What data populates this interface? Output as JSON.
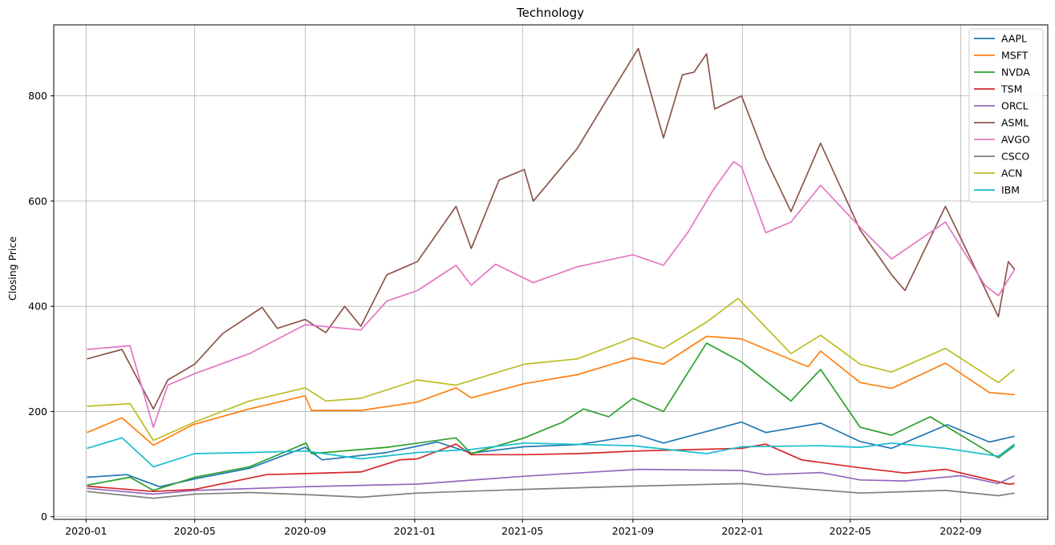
{
  "chart_data": {
    "type": "line",
    "title": "Technology",
    "xlabel": "",
    "ylabel": "Closing Price",
    "grid": true,
    "legend_position": "top-right",
    "xlim": [
      "2019-11-26",
      "2022-12-07"
    ],
    "ylim": [
      -5,
      935
    ],
    "x_ticks": [
      "2020-01",
      "2020-05",
      "2020-09",
      "2021-01",
      "2021-05",
      "2021-09",
      "2022-01",
      "2022-05",
      "2022-09"
    ],
    "y_ticks": [
      0,
      200,
      400,
      600,
      800
    ],
    "series": [
      {
        "name": "AAPL",
        "color": "#1f77b4",
        "points": [
          [
            "2020-01-02",
            75
          ],
          [
            "2020-02-15",
            80
          ],
          [
            "2020-03-23",
            57
          ],
          [
            "2020-05-01",
            72
          ],
          [
            "2020-07-01",
            92
          ],
          [
            "2020-09-01",
            132
          ],
          [
            "2020-09-20",
            108
          ],
          [
            "2020-12-01",
            122
          ],
          [
            "2021-01-26",
            142
          ],
          [
            "2021-03-05",
            121
          ],
          [
            "2021-05-03",
            133
          ],
          [
            "2021-07-01",
            137
          ],
          [
            "2021-09-07",
            155
          ],
          [
            "2021-10-05",
            140
          ],
          [
            "2021-12-31",
            180
          ],
          [
            "2022-01-27",
            160
          ],
          [
            "2022-03-29",
            178
          ],
          [
            "2022-05-12",
            143
          ],
          [
            "2022-06-16",
            130
          ],
          [
            "2022-08-17",
            175
          ],
          [
            "2022-10-03",
            142
          ],
          [
            "2022-10-31",
            153
          ]
        ]
      },
      {
        "name": "MSFT",
        "color": "#ff7f0e",
        "points": [
          [
            "2020-01-02",
            160
          ],
          [
            "2020-02-10",
            188
          ],
          [
            "2020-03-16",
            136
          ],
          [
            "2020-04-29",
            175
          ],
          [
            "2020-07-01",
            205
          ],
          [
            "2020-09-01",
            230
          ],
          [
            "2020-09-08",
            202
          ],
          [
            "2020-11-02",
            202
          ],
          [
            "2021-01-04",
            218
          ],
          [
            "2021-02-16",
            245
          ],
          [
            "2021-03-05",
            226
          ],
          [
            "2021-05-03",
            253
          ],
          [
            "2021-07-01",
            270
          ],
          [
            "2021-09-01",
            302
          ],
          [
            "2021-10-05",
            290
          ],
          [
            "2021-11-22",
            343
          ],
          [
            "2021-12-31",
            338
          ],
          [
            "2022-03-15",
            285
          ],
          [
            "2022-03-29",
            315
          ],
          [
            "2022-05-12",
            255
          ],
          [
            "2022-06-16",
            244
          ],
          [
            "2022-08-15",
            292
          ],
          [
            "2022-10-03",
            236
          ],
          [
            "2022-10-31",
            232
          ]
        ]
      },
      {
        "name": "NVDA",
        "color": "#2ca02c",
        "points": [
          [
            "2020-01-02",
            60
          ],
          [
            "2020-02-19",
            75
          ],
          [
            "2020-03-16",
            50
          ],
          [
            "2020-05-01",
            75
          ],
          [
            "2020-07-01",
            95
          ],
          [
            "2020-09-02",
            140
          ],
          [
            "2020-09-08",
            120
          ],
          [
            "2020-12-01",
            132
          ],
          [
            "2021-02-16",
            150
          ],
          [
            "2021-03-05",
            120
          ],
          [
            "2021-05-03",
            150
          ],
          [
            "2021-06-15",
            180
          ],
          [
            "2021-07-08",
            205
          ],
          [
            "2021-08-05",
            190
          ],
          [
            "2021-09-01",
            225
          ],
          [
            "2021-10-05",
            200
          ],
          [
            "2021-11-22",
            330
          ],
          [
            "2021-12-31",
            294
          ],
          [
            "2022-02-24",
            220
          ],
          [
            "2022-03-29",
            280
          ],
          [
            "2022-05-12",
            170
          ],
          [
            "2022-06-16",
            155
          ],
          [
            "2022-07-29",
            190
          ],
          [
            "2022-10-13",
            112
          ],
          [
            "2022-10-31",
            135
          ]
        ]
      },
      {
        "name": "TSM",
        "color": "#d62728",
        "points": [
          [
            "2020-01-02",
            58
          ],
          [
            "2020-03-16",
            48
          ],
          [
            "2020-05-01",
            52
          ],
          [
            "2020-07-20",
            80
          ],
          [
            "2020-09-01",
            82
          ],
          [
            "2020-11-02",
            85
          ],
          [
            "2020-12-15",
            108
          ],
          [
            "2021-01-04",
            110
          ],
          [
            "2021-02-16",
            138
          ],
          [
            "2021-03-05",
            118
          ],
          [
            "2021-05-03",
            118
          ],
          [
            "2021-07-01",
            120
          ],
          [
            "2021-09-07",
            125
          ],
          [
            "2021-12-31",
            130
          ],
          [
            "2022-01-27",
            138
          ],
          [
            "2022-03-08",
            108
          ],
          [
            "2022-05-12",
            93
          ],
          [
            "2022-07-01",
            83
          ],
          [
            "2022-08-15",
            90
          ],
          [
            "2022-10-24",
            62
          ],
          [
            "2022-10-31",
            63
          ]
        ]
      },
      {
        "name": "ORCL",
        "color": "#9467bd",
        "points": [
          [
            "2020-01-02",
            54
          ],
          [
            "2020-03-16",
            43
          ],
          [
            "2020-05-01",
            50
          ],
          [
            "2020-09-01",
            57
          ],
          [
            "2021-01-04",
            62
          ],
          [
            "2021-05-03",
            77
          ],
          [
            "2021-09-07",
            90
          ],
          [
            "2021-12-31",
            88
          ],
          [
            "2022-01-27",
            80
          ],
          [
            "2022-03-29",
            84
          ],
          [
            "2022-05-12",
            70
          ],
          [
            "2022-07-01",
            68
          ],
          [
            "2022-09-01",
            78
          ],
          [
            "2022-10-13",
            63
          ],
          [
            "2022-10-31",
            78
          ]
        ]
      },
      {
        "name": "ASML",
        "color": "#8c564b",
        "points": [
          [
            "2020-01-02",
            300
          ],
          [
            "2020-02-10",
            318
          ],
          [
            "2020-03-16",
            205
          ],
          [
            "2020-04-01",
            260
          ],
          [
            "2020-05-01",
            290
          ],
          [
            "2020-06-01",
            348
          ],
          [
            "2020-07-15",
            398
          ],
          [
            "2020-08-01",
            358
          ],
          [
            "2020-09-01",
            375
          ],
          [
            "2020-09-24",
            350
          ],
          [
            "2020-10-15",
            400
          ],
          [
            "2020-11-02",
            362
          ],
          [
            "2020-12-01",
            460
          ],
          [
            "2021-01-04",
            485
          ],
          [
            "2021-02-16",
            590
          ],
          [
            "2021-03-05",
            510
          ],
          [
            "2021-04-05",
            640
          ],
          [
            "2021-05-03",
            660
          ],
          [
            "2021-05-13",
            600
          ],
          [
            "2021-07-01",
            700
          ],
          [
            "2021-08-02",
            790
          ],
          [
            "2021-09-07",
            890
          ],
          [
            "2021-10-05",
            720
          ],
          [
            "2021-10-26",
            840
          ],
          [
            "2021-11-08",
            845
          ],
          [
            "2021-11-22",
            880
          ],
          [
            "2021-12-01",
            775
          ],
          [
            "2021-12-31",
            800
          ],
          [
            "2022-01-27",
            680
          ],
          [
            "2022-02-24",
            580
          ],
          [
            "2022-03-29",
            710
          ],
          [
            "2022-05-12",
            545
          ],
          [
            "2022-06-16",
            460
          ],
          [
            "2022-07-01",
            430
          ],
          [
            "2022-08-15",
            590
          ],
          [
            "2022-09-01",
            530
          ],
          [
            "2022-10-13",
            380
          ],
          [
            "2022-10-24",
            485
          ],
          [
            "2022-10-31",
            470
          ]
        ]
      },
      {
        "name": "AVGO",
        "color": "#e377c2",
        "points": [
          [
            "2020-01-02",
            318
          ],
          [
            "2020-02-19",
            325
          ],
          [
            "2020-03-16",
            170
          ],
          [
            "2020-04-01",
            250
          ],
          [
            "2020-05-01",
            272
          ],
          [
            "2020-07-01",
            310
          ],
          [
            "2020-09-01",
            365
          ],
          [
            "2020-11-02",
            355
          ],
          [
            "2020-12-01",
            410
          ],
          [
            "2021-01-04",
            430
          ],
          [
            "2021-02-16",
            478
          ],
          [
            "2021-03-05",
            440
          ],
          [
            "2021-04-01",
            480
          ],
          [
            "2021-05-13",
            445
          ],
          [
            "2021-07-01",
            475
          ],
          [
            "2021-09-01",
            498
          ],
          [
            "2021-10-05",
            478
          ],
          [
            "2021-11-01",
            540
          ],
          [
            "2021-11-29",
            620
          ],
          [
            "2021-12-22",
            675
          ],
          [
            "2021-12-31",
            665
          ],
          [
            "2022-01-27",
            540
          ],
          [
            "2022-02-24",
            560
          ],
          [
            "2022-03-29",
            630
          ],
          [
            "2022-05-12",
            550
          ],
          [
            "2022-06-16",
            490
          ],
          [
            "2022-08-15",
            560
          ],
          [
            "2022-09-28",
            440
          ],
          [
            "2022-10-13",
            420
          ],
          [
            "2022-10-31",
            470
          ]
        ]
      },
      {
        "name": "CSCO",
        "color": "#7f7f7f",
        "points": [
          [
            "2020-01-02",
            48
          ],
          [
            "2020-03-16",
            35
          ],
          [
            "2020-05-01",
            43
          ],
          [
            "2020-07-01",
            46
          ],
          [
            "2020-09-01",
            42
          ],
          [
            "2020-11-02",
            37
          ],
          [
            "2021-01-04",
            45
          ],
          [
            "2021-05-03",
            52
          ],
          [
            "2021-09-01",
            58
          ],
          [
            "2021-12-31",
            63
          ],
          [
            "2022-02-24",
            55
          ],
          [
            "2022-05-12",
            45
          ],
          [
            "2022-08-15",
            50
          ],
          [
            "2022-10-13",
            40
          ],
          [
            "2022-10-31",
            45
          ]
        ]
      },
      {
        "name": "ACN",
        "color": "#bcbd22",
        "points": [
          [
            "2020-01-02",
            210
          ],
          [
            "2020-02-19",
            215
          ],
          [
            "2020-03-16",
            145
          ],
          [
            "2020-05-01",
            180
          ],
          [
            "2020-07-01",
            220
          ],
          [
            "2020-09-01",
            245
          ],
          [
            "2020-09-24",
            220
          ],
          [
            "2020-11-02",
            225
          ],
          [
            "2021-01-04",
            260
          ],
          [
            "2021-02-16",
            250
          ],
          [
            "2021-05-03",
            290
          ],
          [
            "2021-07-01",
            300
          ],
          [
            "2021-09-01",
            340
          ],
          [
            "2021-10-05",
            320
          ],
          [
            "2021-11-22",
            370
          ],
          [
            "2021-12-27",
            415
          ],
          [
            "2022-02-24",
            310
          ],
          [
            "2022-03-29",
            345
          ],
          [
            "2022-05-12",
            290
          ],
          [
            "2022-06-16",
            275
          ],
          [
            "2022-08-15",
            320
          ],
          [
            "2022-10-13",
            255
          ],
          [
            "2022-10-31",
            280
          ]
        ]
      },
      {
        "name": "IBM",
        "color": "#17becf",
        "points": [
          [
            "2020-01-02",
            130
          ],
          [
            "2020-02-10",
            150
          ],
          [
            "2020-03-16",
            95
          ],
          [
            "2020-05-01",
            120
          ],
          [
            "2020-07-01",
            122
          ],
          [
            "2020-09-01",
            125
          ],
          [
            "2020-11-02",
            110
          ],
          [
            "2021-01-04",
            122
          ],
          [
            "2021-03-05",
            128
          ],
          [
            "2021-05-03",
            140
          ],
          [
            "2021-09-01",
            135
          ],
          [
            "2021-11-22",
            120
          ],
          [
            "2021-12-31",
            133
          ],
          [
            "2022-03-29",
            135
          ],
          [
            "2022-05-12",
            132
          ],
          [
            "2022-06-16",
            140
          ],
          [
            "2022-08-15",
            130
          ],
          [
            "2022-10-13",
            115
          ],
          [
            "2022-10-31",
            138
          ]
        ]
      }
    ]
  }
}
